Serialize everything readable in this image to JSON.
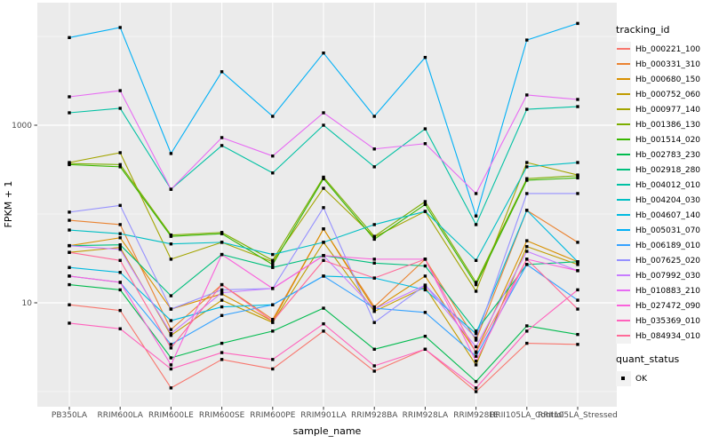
{
  "figure": {
    "y_axis_label": "FPKM + 1",
    "x_axis_label": "sample_name",
    "legend_title": "tracking_id",
    "quant_legend_title": "quant_status",
    "quant_legend_item": "OK"
  },
  "colors": {
    "panel_bg": "#EBEBEB",
    "grid_major": "#FFFFFF",
    "grid_minor": "#FFFFFF",
    "tick_mark": "#333333",
    "tick_label": "#4D4D4D",
    "axis_title": "#000000",
    "point": "#000000",
    "legend_key_bg": "#F2F2F2"
  },
  "chart_data": {
    "type": "line",
    "title": "",
    "xlabel": "sample_name",
    "ylabel": "FPKM + 1",
    "y_scale": "log10",
    "ylim": [
      0.7,
      24000
    ],
    "y_major_ticks": [
      10,
      1000
    ],
    "y_major_tick_labels": [
      "10",
      "1000"
    ],
    "y_minor_ticks": [
      1,
      100,
      10000
    ],
    "grid": true,
    "legend_position": "right",
    "legend_title": "tracking_id",
    "quant_status_legend": {
      "title": "quant_status",
      "items": [
        "OK"
      ]
    },
    "point_shape": "black-square",
    "categories": [
      "PB350LA",
      "RRIM600LA",
      "RRIM600LE",
      "RRIM600SE",
      "RRIM600PE",
      "RRIM901LA",
      "RRIM928BA",
      "RRIM928LA",
      "RRIM928LE",
      "RRII105LA_Control",
      "RRII105LA_Stressed"
    ],
    "series": [
      {
        "name": "Hb_000221_100",
        "color": "#F8766D",
        "values": [
          9.5,
          8.2,
          1.1,
          2.3,
          1.8,
          4.8,
          1.7,
          3.0,
          1.0,
          3.5,
          3.4
        ]
      },
      {
        "name": "Hb_000331_310",
        "color": "#EA8331",
        "values": [
          85,
          76,
          5.0,
          16,
          6.5,
          68,
          9.0,
          31,
          3.8,
          110,
          48
        ]
      },
      {
        "name": "Hb_000680_150",
        "color": "#D89000",
        "values": [
          44,
          54,
          8.5,
          12.6,
          6.2,
          68,
          8.5,
          20,
          2.8,
          50,
          29
        ]
      },
      {
        "name": "Hb_000752_060",
        "color": "#C09B00",
        "values": [
          37,
          42,
          4.3,
          10.7,
          6.0,
          48,
          8.0,
          15,
          2.0,
          43,
          27
        ]
      },
      {
        "name": "Hb_000977_140",
        "color": "#A3A500",
        "values": [
          380,
          490,
          31,
          48,
          29,
          195,
          55,
          107,
          13.5,
          380,
          275
        ]
      },
      {
        "name": "Hb_001386_130",
        "color": "#7CAE00",
        "values": [
          370,
          360,
          58,
          62,
          30,
          260,
          56,
          138,
          17,
          250,
          270
        ]
      },
      {
        "name": "Hb_001514_020",
        "color": "#39B600",
        "values": [
          360,
          340,
          56,
          60,
          27,
          250,
          52,
          128,
          16,
          240,
          255
        ]
      },
      {
        "name": "Hb_002783_230",
        "color": "#00BB4E",
        "values": [
          16,
          14,
          2.4,
          3.5,
          4.8,
          8.7,
          3.0,
          4.2,
          1.3,
          5.5,
          4.4
        ]
      },
      {
        "name": "Hb_002918_280",
        "color": "#00BF7D",
        "values": [
          44,
          45,
          12,
          35,
          25,
          34,
          28,
          26,
          4.8,
          27,
          29
        ]
      },
      {
        "name": "Hb_004012_010",
        "color": "#00C1A3",
        "values": [
          1380,
          1550,
          190,
          590,
          290,
          1000,
          340,
          910,
          76,
          1510,
          1620
        ]
      },
      {
        "name": "Hb_004204_030",
        "color": "#00BFC4",
        "values": [
          66,
          60,
          46,
          48,
          35,
          48,
          76,
          107,
          30,
          340,
          380
        ]
      },
      {
        "name": "Hb_004607_140",
        "color": "#00BAE0",
        "values": [
          25,
          22,
          6.3,
          9.0,
          9.5,
          20,
          19,
          14,
          4.5,
          110,
          29
        ]
      },
      {
        "name": "Hb_005031_070",
        "color": "#00B0F6",
        "values": [
          9700,
          12600,
          480,
          4000,
          1260,
          6500,
          1260,
          5800,
          95,
          9100,
          14000
        ]
      },
      {
        "name": "Hb_006189_010",
        "color": "#35A2FF",
        "values": [
          20,
          17,
          3.4,
          7.2,
          9.5,
          20,
          8.7,
          7.8,
          2.5,
          27,
          10.7
        ]
      },
      {
        "name": "Hb_007625_020",
        "color": "#9590FF",
        "values": [
          105,
          125,
          8.5,
          14,
          14.5,
          118,
          6.0,
          15.8,
          4.0,
          170,
          170
        ]
      },
      {
        "name": "Hb_007992_030",
        "color": "#C77CFF",
        "values": [
          44,
          40,
          4.5,
          13,
          14.5,
          34,
          8.5,
          15.8,
          3.2,
          38,
          23
        ]
      },
      {
        "name": "Hb_010883_210",
        "color": "#E76BF3",
        "values": [
          2090,
          2450,
          190,
          725,
          450,
          1380,
          540,
          620,
          170,
          2190,
          1950
        ]
      },
      {
        "name": "Hb_027472_090",
        "color": "#FA62DB",
        "values": [
          20,
          17,
          2.0,
          35,
          14.5,
          34,
          31,
          31,
          2.2,
          31,
          23
        ]
      },
      {
        "name": "Hb_035369_010",
        "color": "#FF62BC",
        "values": [
          5.9,
          5.1,
          1.8,
          2.75,
          2.3,
          5.8,
          1.95,
          3.0,
          1.1,
          4.8,
          14
        ]
      },
      {
        "name": "Hb_084934_010",
        "color": "#FF6A98",
        "values": [
          37,
          30,
          3.1,
          16,
          6.2,
          30,
          19,
          31,
          2.75,
          31,
          8.5
        ]
      }
    ]
  }
}
